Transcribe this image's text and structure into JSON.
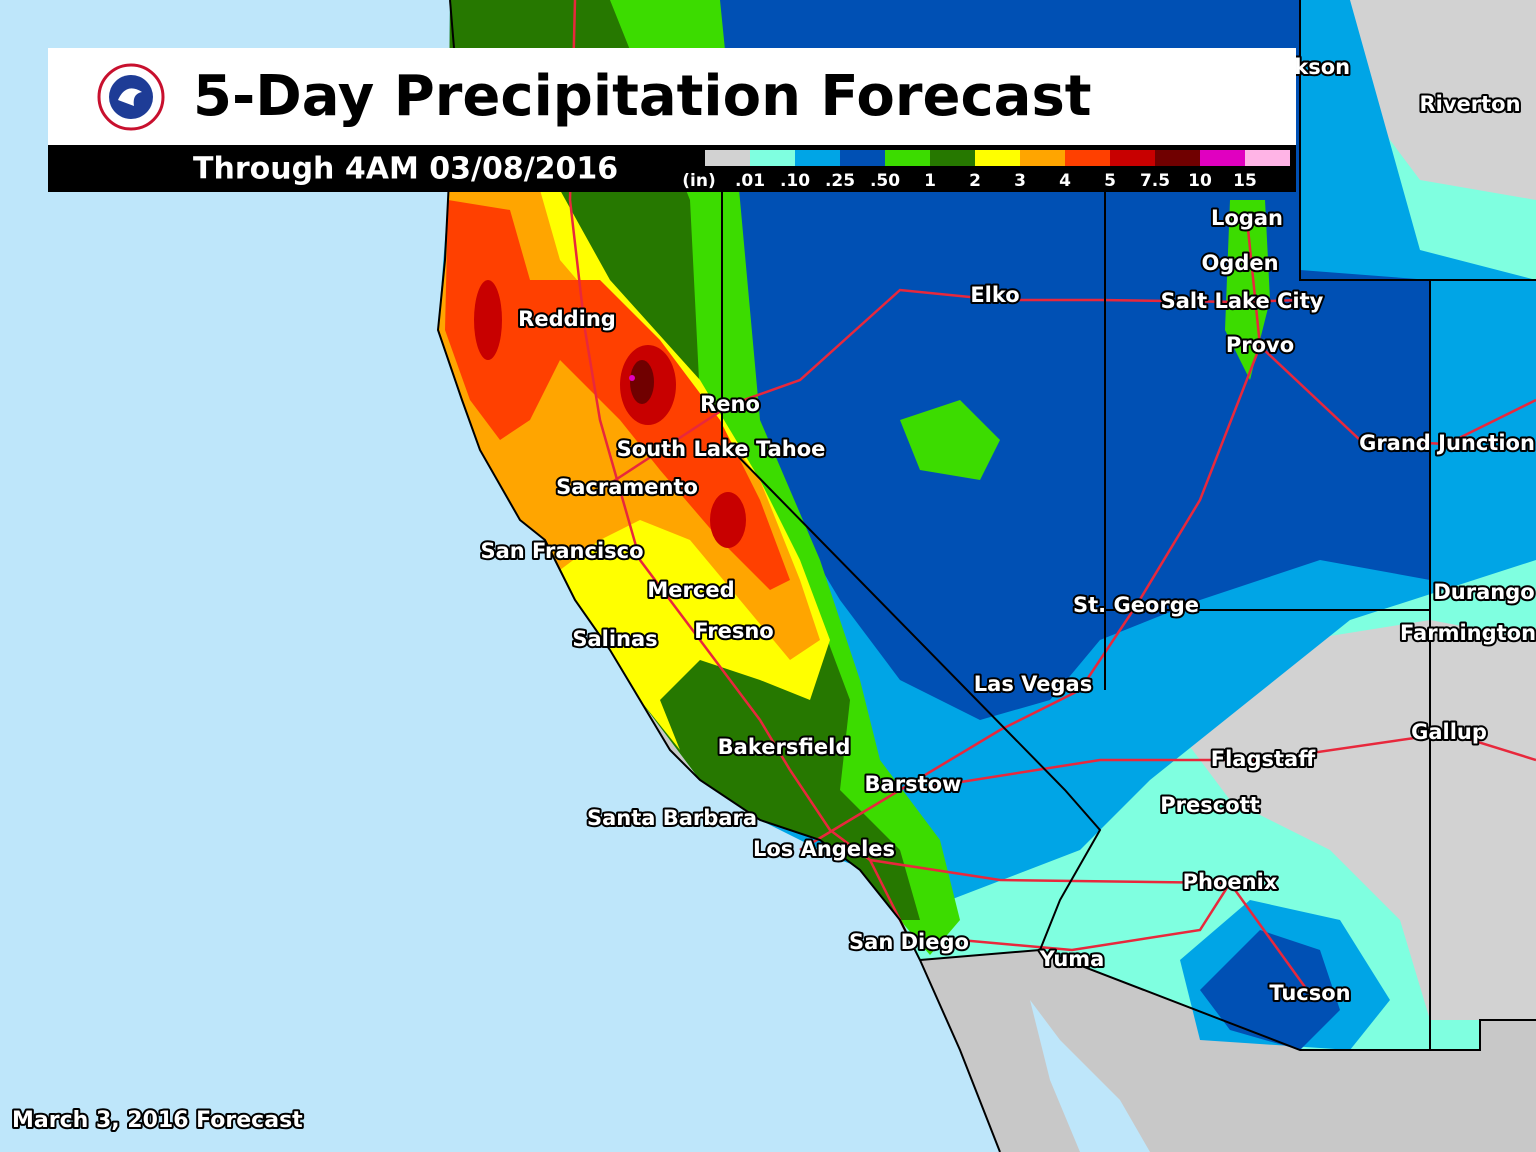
{
  "header": {
    "title": "5-Day Precipitation Forecast",
    "subtitle": "Through 4AM 03/08/2016"
  },
  "legend": {
    "unit": "(in)",
    "labels": [
      ".01",
      ".10",
      ".25",
      ".50",
      "1",
      "2",
      "3",
      "4",
      "5",
      "7.5",
      "10",
      "15"
    ],
    "colors": [
      "#d2d2d2",
      "#7fffe0",
      "#00a5e6",
      "#0050b4",
      "#3cdc00",
      "#267800",
      "#ffff00",
      "#ffa500",
      "#ff4000",
      "#c80000",
      "#700000",
      "#e000c0",
      "#ffb4e6"
    ]
  },
  "cities": [
    "Jackson",
    "Riverton",
    "Logan",
    "Ogden",
    "Salt Lake City",
    "Provo",
    "Elko",
    "Redding",
    "Reno",
    "South Lake Tahoe",
    "Sacramento",
    "San Francisco",
    "Merced",
    "Fresno",
    "Salinas",
    "Grand Junction",
    "St. George",
    "Durango",
    "Farmington",
    "Las Vegas",
    "Gallup",
    "Bakersfield",
    "Flagstaff",
    "Barstow",
    "Prescott",
    "Santa Barbara",
    "Los Angeles",
    "Phoenix",
    "San Diego",
    "Yuma",
    "Tucson"
  ],
  "footer": "March 3, 2016 Forecast"
}
